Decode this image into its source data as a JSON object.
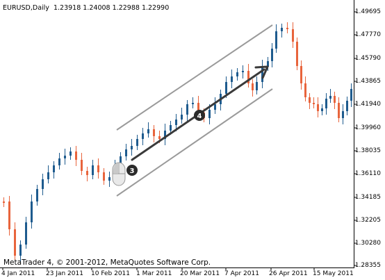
{
  "header": {
    "symbol": "EURUSD,Daily",
    "open": "1.23918",
    "high": "1.24008",
    "low": "1.22988",
    "close": "1.22990"
  },
  "copyright": "MetaTrader 4, © 2001-2012, MetaQuotes Software Corp.",
  "price_axis": [
    "1.49695",
    "1.47770",
    "1.45790",
    "1.43865",
    "1.41940",
    "1.39960",
    "1.38035",
    "1.36110",
    "1.34185",
    "1.32205",
    "1.30280",
    "1.28355"
  ],
  "time_axis": [
    "4 Jan 2011",
    "23 Jan 2011",
    "10 Feb 2011",
    "1 Mar 2011",
    "20 Mar 2011",
    "7 Apr 2011",
    "26 Apr 2011",
    "15 May 2011"
  ],
  "markers": {
    "mouse_step": "3",
    "drag_step": "4"
  },
  "icons": {
    "mouse": "mouse-icon",
    "arrow": "drag-arrow-icon"
  },
  "colors": {
    "bull": "#1e5b8e",
    "bear": "#e8643c",
    "channel": "#9a9a9a",
    "arrow": "#3a3a3a",
    "axis": "#000000"
  }
}
